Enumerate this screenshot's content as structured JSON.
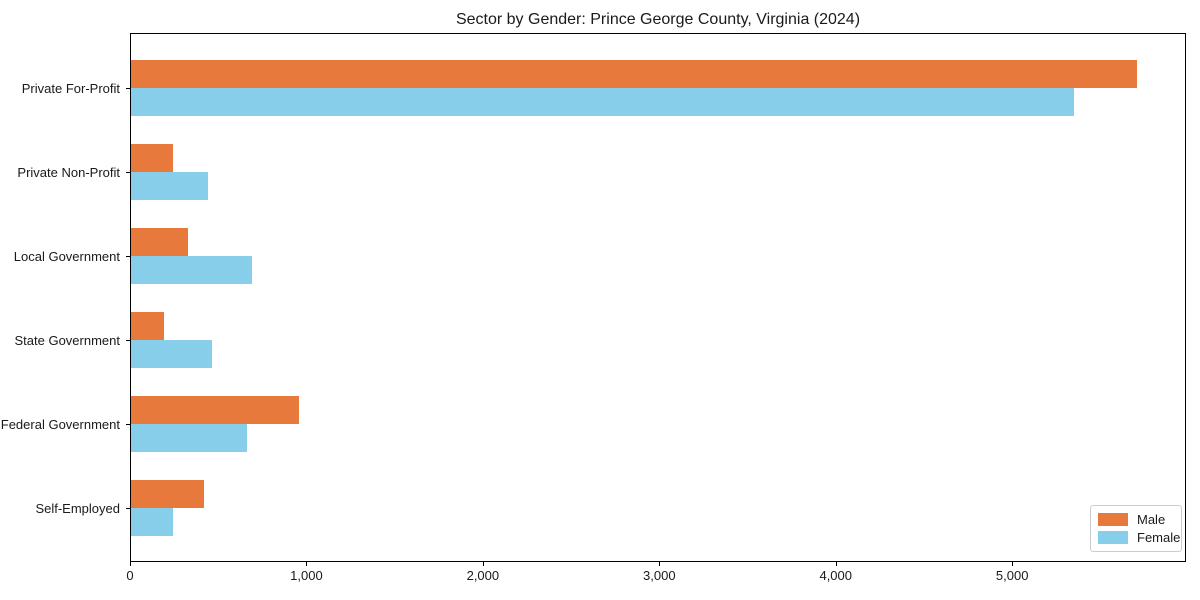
{
  "title": "Sector by Gender: Prince George County, Virginia (2024)",
  "chart_data": {
    "type": "bar",
    "orientation": "horizontal",
    "title": "Sector by Gender: Prince George County, Virginia (2024)",
    "xlabel": "",
    "ylabel": "",
    "categories": [
      "Private For-Profit",
      "Private Non-Profit",
      "Local Government",
      "State Government",
      "Federal Government",
      "Self-Employed"
    ],
    "series": [
      {
        "name": "Male",
        "color": "#E8793D",
        "values": [
          5700,
          240,
          325,
          185,
          950,
          415
        ]
      },
      {
        "name": "Female",
        "color": "#87CEEB",
        "values": [
          5345,
          435,
          685,
          460,
          655,
          240
        ]
      }
    ],
    "xlim": [
      0,
      5985
    ],
    "xticks": [
      0,
      1000,
      2000,
      3000,
      4000,
      5000
    ],
    "xtick_labels": [
      "0",
      "1,000",
      "2,000",
      "3,000",
      "4,000",
      "5,000"
    ],
    "grid": false,
    "legend_position": "lower right"
  },
  "legend": {
    "items": [
      {
        "label": "Male",
        "color": "#E8793D"
      },
      {
        "label": "Female",
        "color": "#87CEEB"
      }
    ]
  }
}
